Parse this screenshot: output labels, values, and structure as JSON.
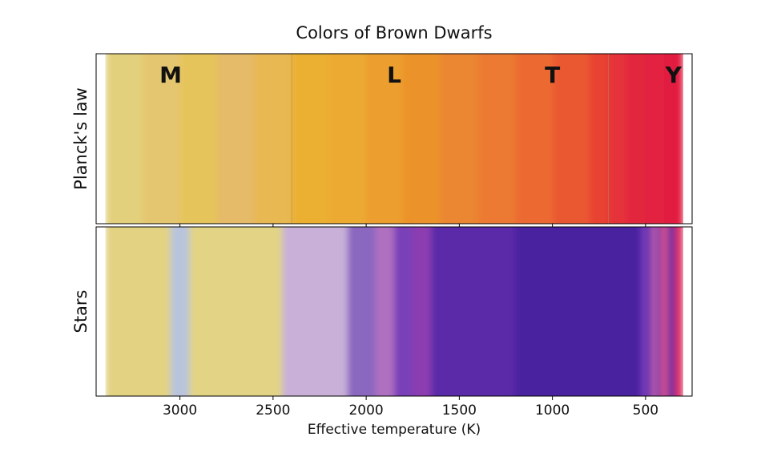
{
  "chart_data": {
    "type": "strip",
    "title": "Colors of Brown Dwarfs",
    "xlabel": "Effective temperature (K)",
    "xlim": [
      3450,
      250
    ],
    "xticks": [
      3000,
      2500,
      2000,
      1500,
      1000,
      500
    ],
    "panels": [
      {
        "ylabel": "Planck's law",
        "bins": [
          3400,
          3200,
          3000,
          2800,
          2600,
          2400,
          2200,
          2000,
          1800,
          1600,
          1400,
          1200,
          1000,
          800,
          700,
          600,
          500,
          400,
          300
        ],
        "colors": [
          "#e2d07c",
          "#e4c670",
          "#e6c45c",
          "#e5ba68",
          "#e8b852",
          "#ebb032",
          "#ecaa30",
          "#ec9e2e",
          "#ec922c",
          "#eb8630",
          "#ec7a30",
          "#ec6a30",
          "#ea5830",
          "#e84232",
          "#e5323a",
          "#e2263e",
          "#e22040",
          "#e21e40"
        ],
        "boundaries": [
          2400,
          700
        ],
        "annotations": [
          {
            "text": "M",
            "x": 3050
          },
          {
            "text": "L",
            "x": 1850
          },
          {
            "text": "T",
            "x": 1000
          },
          {
            "text": "Y",
            "x": 350
          }
        ]
      },
      {
        "ylabel": "Stars",
        "bins": [
          3400,
          3050,
          2950,
          2450,
          2100,
          1950,
          1850,
          1750,
          1650,
          1200,
          520,
          490,
          470,
          440,
          420,
          380,
          340,
          300
        ],
        "colors": [
          "#e2d282",
          "#b8c4dc",
          "#e2d484",
          "#c8b0d8",
          "#8a68c0",
          "#b070c0",
          "#7a40b8",
          "#8c3cb0",
          "#5a2aa8",
          "#4a22a0",
          "#8040c0",
          "#4a22a0",
          "#c060b0",
          "#6030a8",
          "#d05090",
          "#7030a0",
          "#e03060"
        ]
      }
    ]
  }
}
